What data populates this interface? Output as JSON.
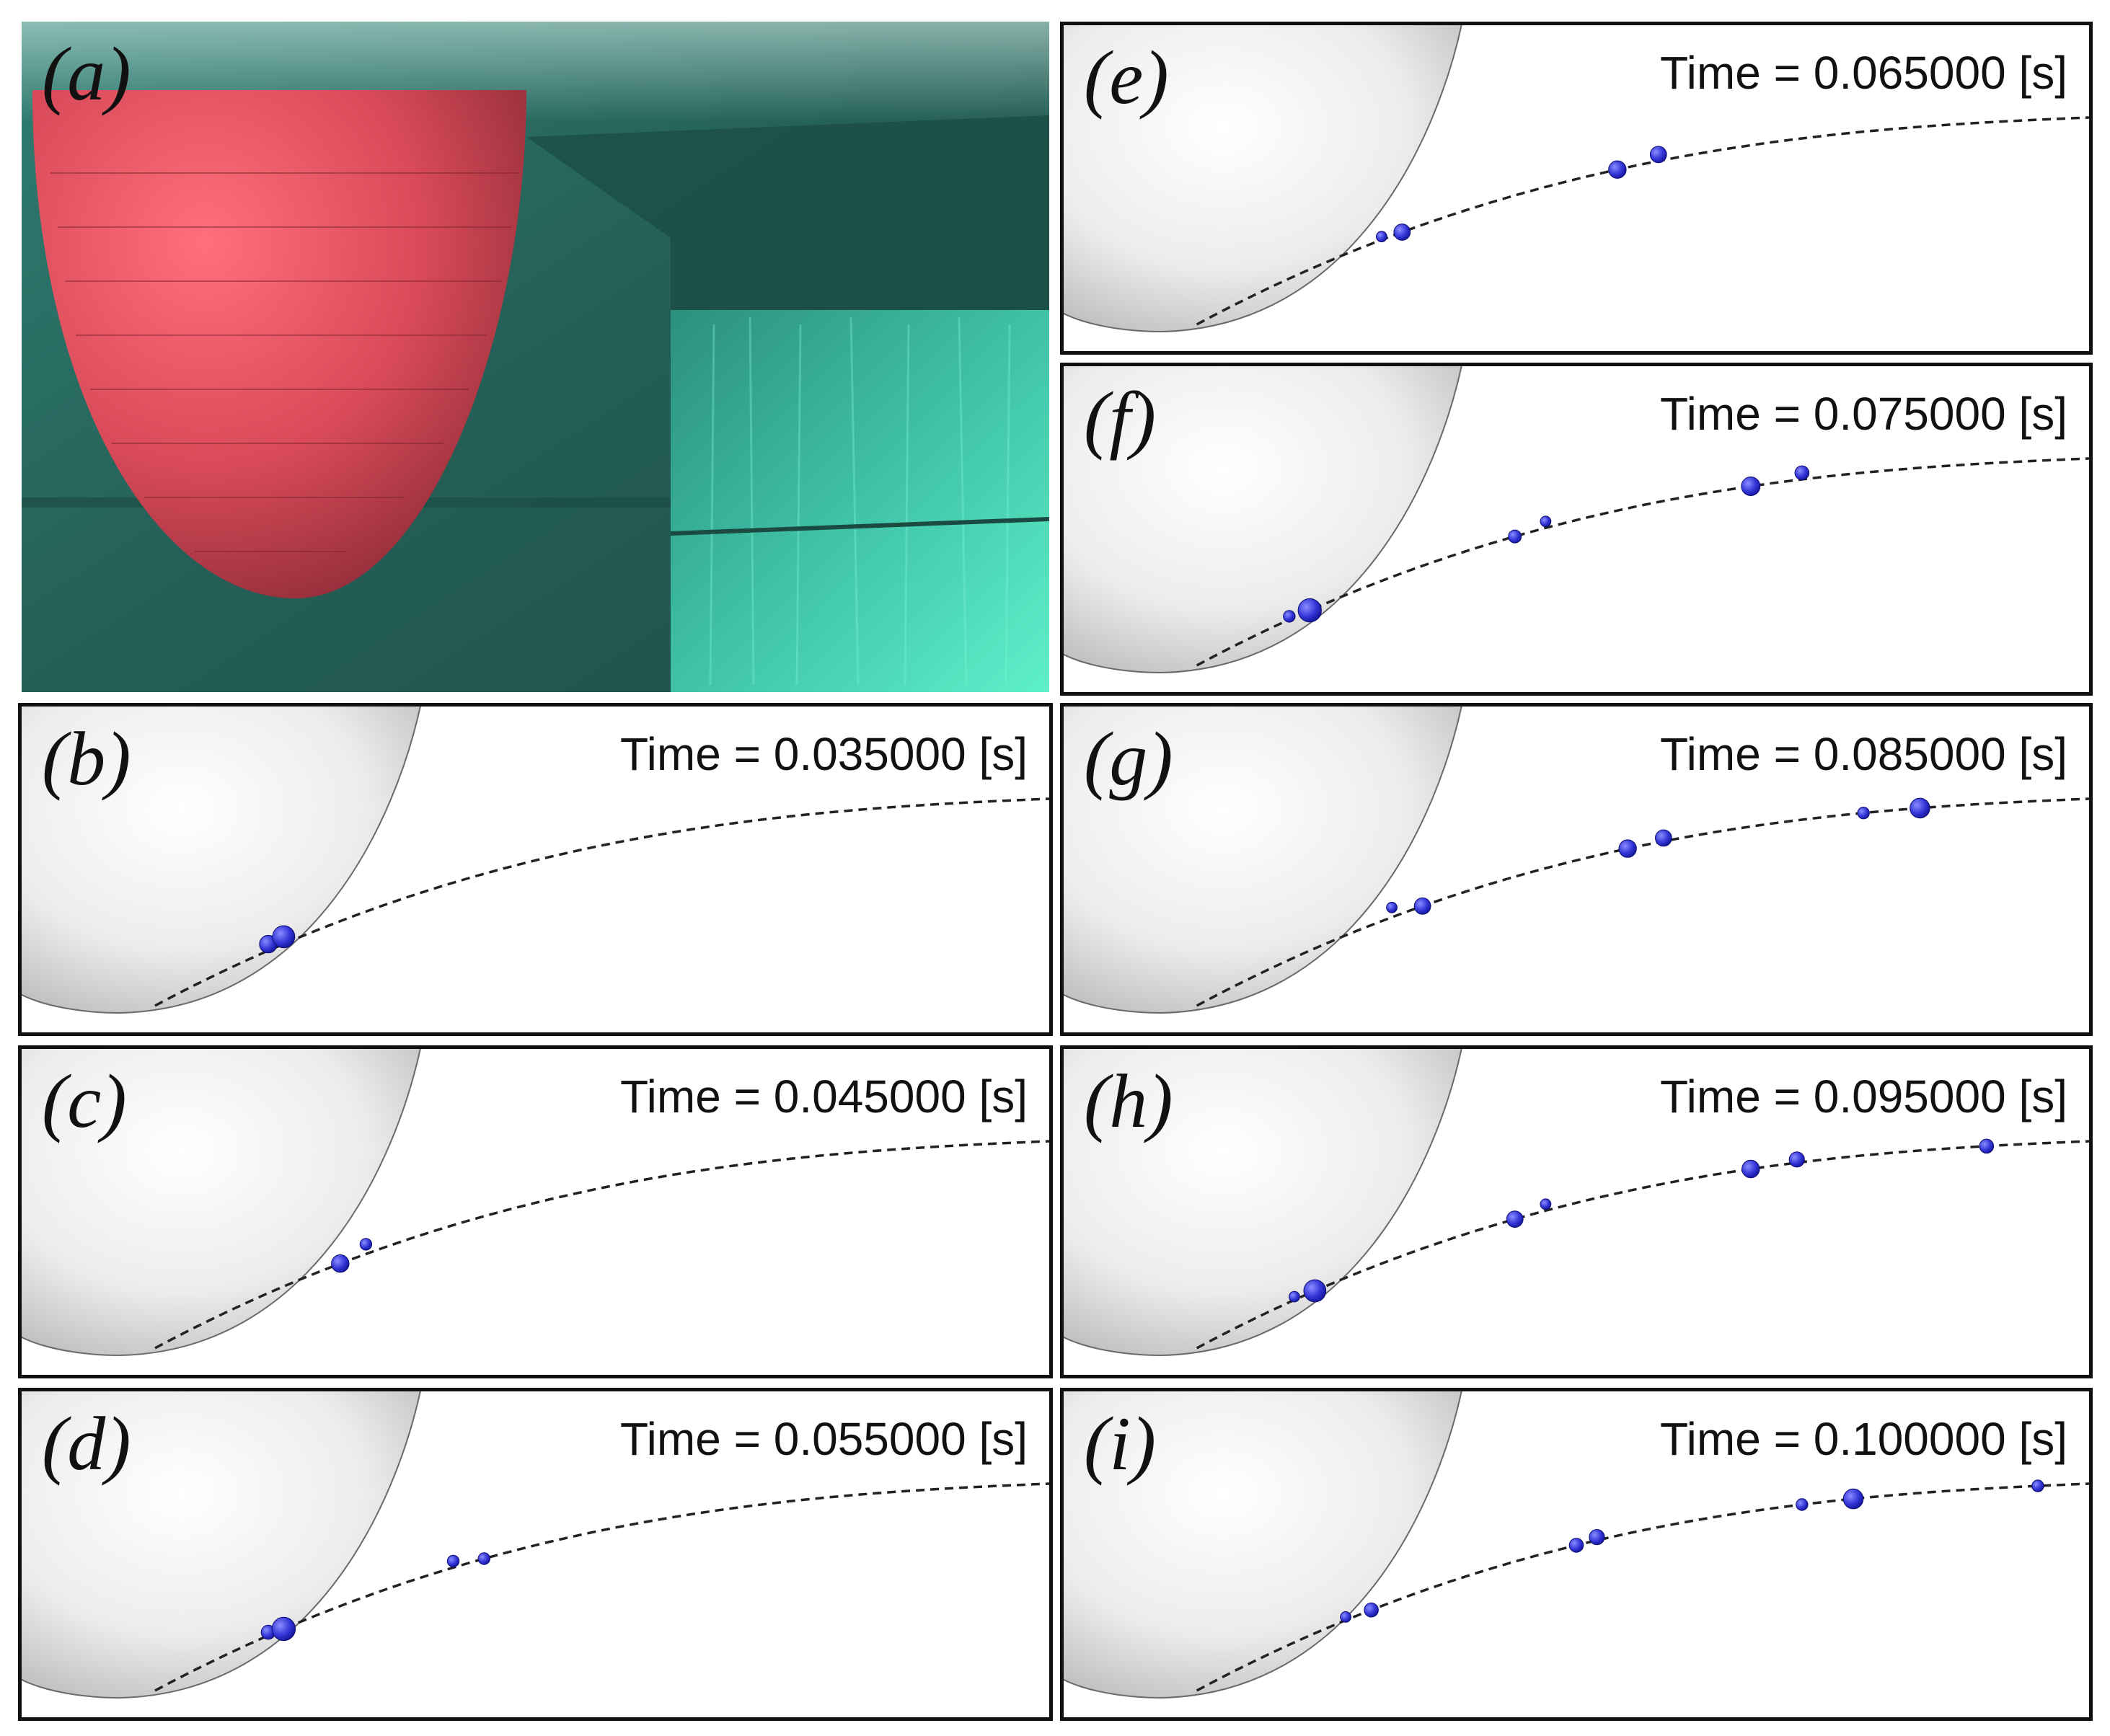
{
  "figure": {
    "photo_panel": {
      "label": "(a)"
    },
    "sim_panels": [
      {
        "id": "b",
        "label": "(b)",
        "time_text": "Time = 0.035000 [s]",
        "time_s": 0.035,
        "bubbles": [
          [
            0.24,
            0.02,
            0.9
          ],
          [
            0.255,
            0.022,
            1.3
          ]
        ]
      },
      {
        "id": "c",
        "label": "(c)",
        "time_text": "Time = 0.045000 [s]",
        "time_s": 0.045,
        "bubbles": [
          [
            0.31,
            0.0,
            0.9
          ],
          [
            0.335,
            0.03,
            0.4
          ]
        ]
      },
      {
        "id": "d",
        "label": "(d)",
        "time_text": "Time = 0.055000 [s]",
        "time_s": 0.055,
        "bubbles": [
          [
            0.24,
            0.01,
            0.6
          ],
          [
            0.255,
            0.0,
            1.4
          ],
          [
            0.42,
            0.02,
            0.4
          ],
          [
            0.45,
            0.0,
            0.4
          ]
        ]
      },
      {
        "id": "e",
        "label": "(e)",
        "time_text": "Time = 0.065000 [s]",
        "time_s": 0.065,
        "bubbles": [
          [
            0.33,
            0.0,
            0.8
          ],
          [
            0.31,
            0.01,
            0.3
          ],
          [
            0.54,
            0.0,
            0.9
          ],
          [
            0.58,
            0.02,
            0.8
          ]
        ]
      },
      {
        "id": "f",
        "label": "(f)",
        "time_text": "Time = 0.075000 [s]",
        "time_s": 0.075,
        "bubbles": [
          [
            0.24,
            0.0,
            1.4
          ],
          [
            0.22,
            0.01,
            0.4
          ],
          [
            0.44,
            0.0,
            0.5
          ],
          [
            0.47,
            0.02,
            0.3
          ],
          [
            0.67,
            0.0,
            1.0
          ],
          [
            0.72,
            0.02,
            0.6
          ]
        ]
      },
      {
        "id": "g",
        "label": "(g)",
        "time_text": "Time = 0.085000 [s]",
        "time_s": 0.085,
        "bubbles": [
          [
            0.35,
            0.0,
            0.8
          ],
          [
            0.32,
            0.03,
            0.3
          ],
          [
            0.55,
            0.0,
            0.9
          ],
          [
            0.585,
            0.01,
            0.8
          ],
          [
            0.78,
            0.0,
            0.4
          ],
          [
            0.835,
            0.0,
            1.1
          ]
        ]
      },
      {
        "id": "h",
        "label": "(h)",
        "time_text": "Time = 0.095000 [s]",
        "time_s": 0.095,
        "bubbles": [
          [
            0.245,
            0.0,
            1.3
          ],
          [
            0.225,
            0.01,
            0.3
          ],
          [
            0.44,
            0.0,
            0.8
          ],
          [
            0.47,
            0.02,
            0.3
          ],
          [
            0.67,
            0.0,
            0.9
          ],
          [
            0.715,
            0.01,
            0.7
          ],
          [
            0.9,
            0.0,
            0.6
          ]
        ]
      },
      {
        "id": "i",
        "label": "(i)",
        "time_text": "Time = 0.100000 [s]",
        "time_s": 0.1,
        "bubbles": [
          [
            0.3,
            0.0,
            0.6
          ],
          [
            0.275,
            0.01,
            0.3
          ],
          [
            0.5,
            0.0,
            0.6
          ],
          [
            0.52,
            0.01,
            0.7
          ],
          [
            0.72,
            0.0,
            0.4
          ],
          [
            0.77,
            0.0,
            1.1
          ],
          [
            0.95,
            0.0,
            0.4
          ]
        ]
      }
    ]
  }
}
